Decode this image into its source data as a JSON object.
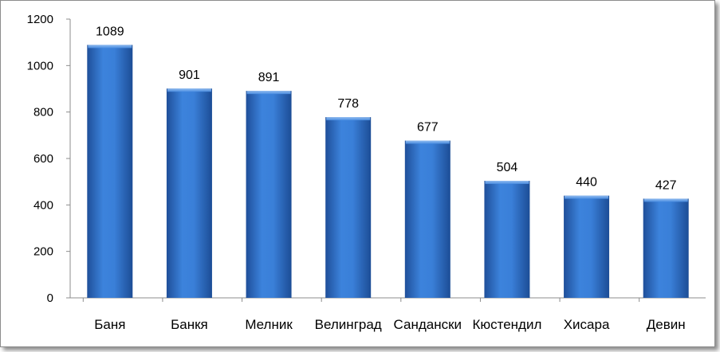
{
  "chart_data": {
    "type": "bar",
    "categories": [
      "Баня",
      "Банкя",
      "Мелник",
      "Велинград",
      "Сандански",
      "Кюстендил",
      "Хисара",
      "Девин"
    ],
    "values": [
      1089,
      901,
      891,
      778,
      677,
      504,
      440,
      427
    ],
    "data_labels": [
      "1089",
      "901",
      "891",
      "778",
      "677",
      "504",
      "440",
      "427"
    ],
    "y_ticks": [
      "0",
      "200",
      "400",
      "600",
      "800",
      "1000",
      "1200"
    ],
    "ylim": [
      0,
      1200
    ],
    "grid": false,
    "legend": "none",
    "bar_color": "#2e6fc8"
  }
}
